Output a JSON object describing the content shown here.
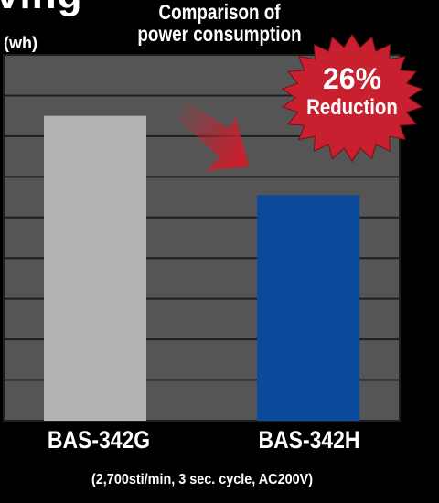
{
  "heading_fragment": "ving",
  "chart_data": {
    "type": "bar",
    "title": [
      "Comparison of",
      "power consumption"
    ],
    "ylabel": "(wh)",
    "xlabel": "",
    "categories": [
      "BAS-342G",
      "BAS-342H"
    ],
    "values": [
      100,
      74
    ],
    "ylim": [
      0,
      120
    ],
    "grid": true,
    "bar_colors": [
      "#b3b3b3",
      "#0b4a9a"
    ],
    "plot_background": "#555555",
    "annotation": {
      "value": "26%",
      "label": "Reduction",
      "color": "#c8202e"
    },
    "arrow_color": "#c8202e"
  },
  "footnote": "(2,700sti/min, 3 sec. cycle, AC200V)"
}
